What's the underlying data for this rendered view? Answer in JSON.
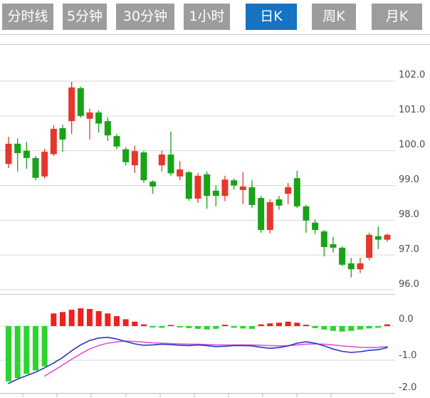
{
  "tabs": [
    {
      "label": "分时线",
      "active": false
    },
    {
      "label": "5分钟",
      "active": false
    },
    {
      "label": "30分钟",
      "active": false
    },
    {
      "label": "1小时",
      "active": false
    },
    {
      "label": "日K",
      "active": true
    },
    {
      "label": "周K",
      "active": false
    },
    {
      "label": "月K",
      "active": false
    }
  ],
  "axis": {
    "price_labels": [
      "102.0",
      "101.0",
      "100.0",
      "99.0",
      "98.0",
      "97.0",
      "96.0"
    ],
    "macd_labels": [
      "0.0",
      "-1.0",
      "-2.0"
    ]
  },
  "colors": {
    "up": "#e5372c",
    "down": "#18a318",
    "macd_up": "#ee2020",
    "macd_down": "#2dd42d",
    "dif_line": "#2737c8",
    "dea_line": "#e052d8",
    "grid": "#d9d9d9",
    "panel_border": "#c9c9c9",
    "axis_text": "#4a4a4a",
    "tab_bg": "#9d9d9d",
    "tab_active_bg": "#1573c0",
    "tab_text": "#ffffff"
  },
  "chart_data": {
    "type": "candlestick+macd",
    "interval": "daily",
    "price_ylim": [
      95.8,
      102.3
    ],
    "price_gridlines": [
      102,
      101,
      100,
      99,
      98,
      97,
      96
    ],
    "macd_ylim": [
      -2.0,
      0.5
    ],
    "macd_gridlines": [
      0,
      -1,
      -2
    ],
    "candles": [
      {
        "o": 99.62,
        "c": 100.2,
        "h": 100.4,
        "l": 99.5
      },
      {
        "o": 100.2,
        "c": 99.93,
        "h": 100.35,
        "l": 99.4
      },
      {
        "o": 100.0,
        "c": 99.79,
        "h": 100.25,
        "l": 99.48
      },
      {
        "o": 99.79,
        "c": 99.22,
        "h": 99.85,
        "l": 99.15
      },
      {
        "o": 99.26,
        "c": 99.97,
        "h": 100.05,
        "l": 99.2
      },
      {
        "o": 99.9,
        "c": 100.63,
        "h": 100.73,
        "l": 99.85
      },
      {
        "o": 100.65,
        "c": 100.32,
        "h": 100.75,
        "l": 99.97
      },
      {
        "o": 100.85,
        "c": 101.82,
        "h": 101.98,
        "l": 100.48
      },
      {
        "o": 101.8,
        "c": 101.0,
        "h": 101.84,
        "l": 100.95
      },
      {
        "o": 100.92,
        "c": 101.1,
        "h": 101.21,
        "l": 100.32
      },
      {
        "o": 101.1,
        "c": 100.78,
        "h": 101.16,
        "l": 100.52
      },
      {
        "o": 100.85,
        "c": 100.44,
        "h": 100.96,
        "l": 100.28
      },
      {
        "o": 100.42,
        "c": 100.12,
        "h": 100.48,
        "l": 100.04
      },
      {
        "o": 100.04,
        "c": 99.67,
        "h": 100.1,
        "l": 99.58
      },
      {
        "o": 99.58,
        "c": 99.99,
        "h": 100.14,
        "l": 99.36
      },
      {
        "o": 99.95,
        "c": 99.15,
        "h": 100.0,
        "l": 99.07
      },
      {
        "o": 99.11,
        "c": 98.97,
        "h": 99.15,
        "l": 98.76
      },
      {
        "o": 99.58,
        "c": 99.89,
        "h": 100.0,
        "l": 99.4
      },
      {
        "o": 99.89,
        "c": 99.35,
        "h": 100.55,
        "l": 99.28
      },
      {
        "o": 99.26,
        "c": 99.46,
        "h": 99.7,
        "l": 99.15
      },
      {
        "o": 99.38,
        "c": 98.62,
        "h": 99.42,
        "l": 98.56
      },
      {
        "o": 98.62,
        "c": 99.28,
        "h": 99.36,
        "l": 98.5
      },
      {
        "o": 99.32,
        "c": 98.7,
        "h": 99.4,
        "l": 98.33
      },
      {
        "o": 98.85,
        "c": 98.7,
        "h": 99.0,
        "l": 98.4
      },
      {
        "o": 98.7,
        "c": 99.17,
        "h": 99.28,
        "l": 98.55
      },
      {
        "o": 99.15,
        "c": 99.0,
        "h": 99.2,
        "l": 98.88
      },
      {
        "o": 98.87,
        "c": 98.97,
        "h": 99.38,
        "l": 98.46
      },
      {
        "o": 98.95,
        "c": 98.44,
        "h": 99.15,
        "l": 98.35
      },
      {
        "o": 98.64,
        "c": 97.72,
        "h": 98.7,
        "l": 97.64
      },
      {
        "o": 97.72,
        "c": 98.52,
        "h": 98.6,
        "l": 97.62
      },
      {
        "o": 98.6,
        "c": 98.42,
        "h": 98.7,
        "l": 98.3
      },
      {
        "o": 98.76,
        "c": 98.95,
        "h": 99.07,
        "l": 98.46
      },
      {
        "o": 99.21,
        "c": 98.4,
        "h": 99.42,
        "l": 98.35
      },
      {
        "o": 98.4,
        "c": 97.99,
        "h": 98.44,
        "l": 97.64
      },
      {
        "o": 97.93,
        "c": 97.72,
        "h": 98.02,
        "l": 97.6
      },
      {
        "o": 97.68,
        "c": 97.23,
        "h": 97.72,
        "l": 96.96
      },
      {
        "o": 97.31,
        "c": 97.21,
        "h": 97.52,
        "l": 97.07
      },
      {
        "o": 97.21,
        "c": 96.72,
        "h": 97.25,
        "l": 96.68
      },
      {
        "o": 96.76,
        "c": 96.59,
        "h": 96.92,
        "l": 96.35
      },
      {
        "o": 96.59,
        "c": 96.76,
        "h": 96.92,
        "l": 96.48
      },
      {
        "o": 96.92,
        "c": 97.58,
        "h": 97.64,
        "l": 96.85
      },
      {
        "o": 97.54,
        "c": 97.44,
        "h": 97.82,
        "l": 97.17
      },
      {
        "o": 97.44,
        "c": 97.58,
        "h": 97.62,
        "l": 97.38
      }
    ],
    "macd": {
      "histogram": [
        -1.62,
        -1.52,
        -1.4,
        -1.3,
        -1.18,
        0.37,
        0.41,
        0.48,
        0.52,
        0.5,
        0.44,
        0.37,
        0.29,
        0.2,
        0.13,
        0.05,
        -0.04,
        -0.05,
        0.03,
        -0.04,
        -0.06,
        -0.08,
        -0.1,
        -0.08,
        0.04,
        -0.05,
        -0.07,
        -0.08,
        0.05,
        0.08,
        0.1,
        0.13,
        0.1,
        0.04,
        -0.06,
        -0.1,
        -0.14,
        -0.16,
        -0.14,
        -0.1,
        -0.07,
        -0.05,
        0.05
      ],
      "dif": [
        -1.68,
        -1.55,
        -1.45,
        -1.35,
        -1.22,
        -1.08,
        -0.92,
        -0.72,
        -0.55,
        -0.42,
        -0.35,
        -0.33,
        -0.38,
        -0.45,
        -0.52,
        -0.56,
        -0.55,
        -0.53,
        -0.54,
        -0.56,
        -0.57,
        -0.55,
        -0.57,
        -0.6,
        -0.59,
        -0.57,
        -0.57,
        -0.58,
        -0.62,
        -0.65,
        -0.63,
        -0.58,
        -0.5,
        -0.46,
        -0.5,
        -0.58,
        -0.67,
        -0.74,
        -0.77,
        -0.75,
        -0.71,
        -0.69,
        -0.63
      ],
      "dea": [
        null,
        null,
        null,
        null,
        -1.46,
        -1.3,
        -1.14,
        -0.97,
        -0.81,
        -0.67,
        -0.57,
        -0.5,
        -0.46,
        -0.44,
        -0.45,
        -0.47,
        -0.49,
        -0.5,
        -0.51,
        -0.52,
        -0.53,
        -0.53,
        -0.54,
        -0.55,
        -0.55,
        -0.55,
        -0.55,
        -0.55,
        -0.56,
        -0.57,
        -0.58,
        -0.57,
        -0.55,
        -0.53,
        -0.52,
        -0.53,
        -0.55,
        -0.58,
        -0.6,
        -0.62,
        -0.63,
        -0.62,
        -0.6
      ]
    },
    "x_ticks": [
      32,
      80,
      128,
      177,
      225,
      273,
      321,
      369,
      417,
      465
    ]
  }
}
